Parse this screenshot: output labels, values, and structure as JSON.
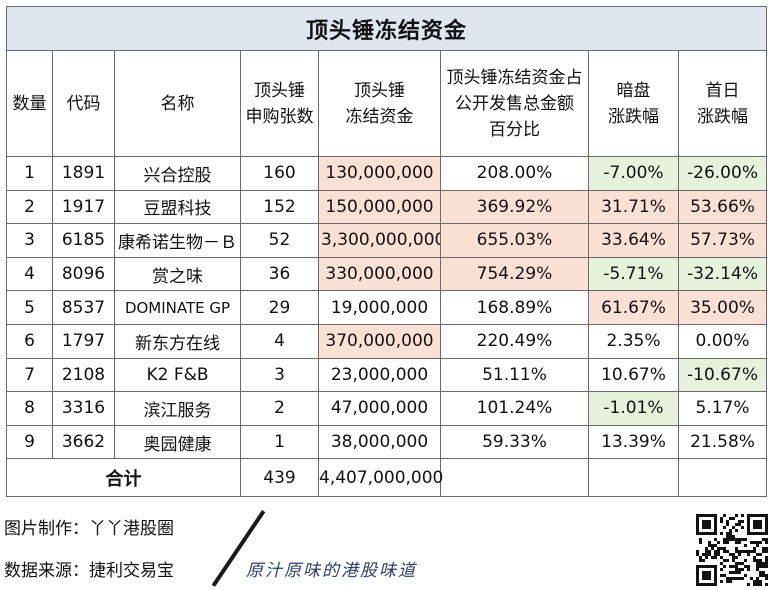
{
  "table": {
    "title": "顶头锤冻结资金",
    "headers": [
      "数量",
      "代码",
      "名称",
      "顶头锤\n申购张数",
      "顶头锤\n冻结资金",
      "顶头锤冻结资金占\n公开发售总金额\n百分比",
      "暗盘\n涨跌幅",
      "首日\n涨跌幅"
    ],
    "rows": [
      {
        "no": "1",
        "code": "1891",
        "name": "兴合控股",
        "lots": "160",
        "frozen": "130,000,000",
        "pct": "208.00%",
        "dark": "-7.00%",
        "first": "-26.00%"
      },
      {
        "no": "2",
        "code": "1917",
        "name": "豆盟科技",
        "lots": "152",
        "frozen": "150,000,000",
        "pct": "369.92%",
        "dark": "31.71%",
        "first": "53.66%"
      },
      {
        "no": "3",
        "code": "6185",
        "name": "康希诺生物－Ｂ",
        "lots": "52",
        "frozen": "3,300,000,000",
        "pct": "655.03%",
        "dark": "33.64%",
        "first": "57.73%"
      },
      {
        "no": "4",
        "code": "8096",
        "name": "赏之味",
        "lots": "36",
        "frozen": "330,000,000",
        "pct": "754.29%",
        "dark": "-5.71%",
        "first": "-32.14%"
      },
      {
        "no": "5",
        "code": "8537",
        "name": "DOMINATE GP",
        "lots": "29",
        "frozen": "19,000,000",
        "pct": "168.89%",
        "dark": "61.67%",
        "first": "35.00%"
      },
      {
        "no": "6",
        "code": "1797",
        "name": "新东方在线",
        "lots": "4",
        "frozen": "370,000,000",
        "pct": "220.49%",
        "dark": "2.35%",
        "first": "0.00%"
      },
      {
        "no": "7",
        "code": "2108",
        "name": "K2 F&B",
        "lots": "3",
        "frozen": "23,000,000",
        "pct": "51.11%",
        "dark": "10.67%",
        "first": "-10.67%"
      },
      {
        "no": "8",
        "code": "3316",
        "name": "滨江服务",
        "lots": "2",
        "frozen": "47,000,000",
        "pct": "101.24%",
        "dark": "-1.01%",
        "first": "5.17%"
      },
      {
        "no": "9",
        "code": "3662",
        "name": "奥园健康",
        "lots": "1",
        "frozen": "38,000,000",
        "pct": "59.33%",
        "dark": "13.39%",
        "first": "21.58%"
      }
    ],
    "total": {
      "label": "合计",
      "lots": "439",
      "frozen": "4,407,000,000"
    }
  },
  "footer": {
    "credit_1": "图片制作：丫丫港股圈",
    "credit_2": "数据来源：捷利交易宝",
    "slogan": "原汁原味的港股味道"
  },
  "colors": {
    "header_bg": "#dfe6ef",
    "highlight_pink": "#fbe0d6",
    "highlight_green": "#e6f2dc",
    "border": "#6a6a6a"
  }
}
